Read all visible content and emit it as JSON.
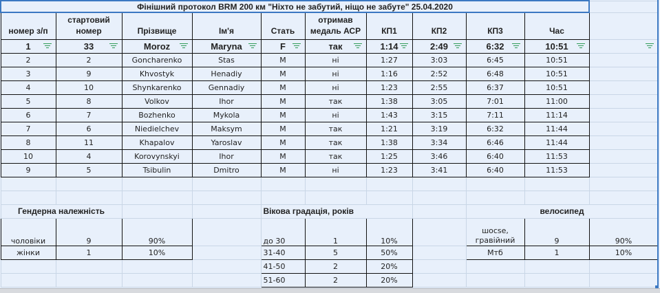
{
  "title": "Фінішний протокол BRM 200 км \"Ніхто не забутий, ніщо не забуте\"  25.04.2020",
  "headers": [
    "номер з/п",
    "стартовий номер",
    "Прізвище",
    "Ім'я",
    "Стать",
    "отримав медаль АСР",
    "КП1",
    "КП2",
    "КП3",
    "Час"
  ],
  "filter_icon": "filter-icon",
  "rows": [
    [
      "1",
      "33",
      "Moroz",
      "Maryna",
      "F",
      "так",
      "1:14",
      "2:49",
      "6:32",
      "10:51"
    ],
    [
      "2",
      "2",
      "Goncharenko",
      "Stas",
      "M",
      "ні",
      "1:27",
      "3:03",
      "6:45",
      "10:51"
    ],
    [
      "3",
      "9",
      "Khvostyk",
      "Henadiy",
      "M",
      "ні",
      "1:16",
      "2:52",
      "6:48",
      "10:51"
    ],
    [
      "4",
      "10",
      "Shynkarenko",
      "Gennadiy",
      "M",
      "ні",
      "1:23",
      "2:55",
      "6:37",
      "10:51"
    ],
    [
      "5",
      "8",
      "Volkov",
      "Ihor",
      "M",
      "так",
      "1:38",
      "3:05",
      "7:01",
      "11:00"
    ],
    [
      "6",
      "7",
      "Bozhenko",
      "Mykola",
      "M",
      "ні",
      "1:43",
      "3:15",
      "7:11",
      "11:14"
    ],
    [
      "7",
      "6",
      "Niedielchev",
      "Maksym",
      "M",
      "так",
      "1:21",
      "3:19",
      "6:32",
      "11:44"
    ],
    [
      "8",
      "11",
      "Khapalov",
      "Yaroslav",
      "M",
      "так",
      "1:38",
      "3:34",
      "6:46",
      "11:44"
    ],
    [
      "10",
      "4",
      "Korovynskyi",
      "Ihor",
      "M",
      "так",
      "1:25",
      "3:46",
      "6:40",
      "11:53"
    ],
    [
      "9",
      "5",
      "Tsibulin",
      "Dmitro",
      "M",
      "ні",
      "1:23",
      "3:41",
      "6:40",
      "11:53"
    ]
  ],
  "gender": {
    "heading": "Гендерна належність",
    "rows": [
      [
        "чоловіки",
        "9",
        "90%"
      ],
      [
        "жінки",
        "1",
        "10%"
      ]
    ]
  },
  "age": {
    "heading": "Вікова градація, років",
    "rows": [
      [
        "до 30",
        "1",
        "10%"
      ],
      [
        "31-40",
        "5",
        "50%"
      ],
      [
        "41-50",
        "2",
        "20%"
      ],
      [
        "51-60",
        "2",
        "20%"
      ]
    ]
  },
  "bike": {
    "heading": "велосипед",
    "rows": [
      [
        "шосse, гравійний",
        "9",
        "90%"
      ],
      [
        "Мтб",
        "1",
        "10%"
      ]
    ]
  },
  "colors": {
    "background": "#e8f0fb",
    "selection": "#3b78c2",
    "filter": "#2e9b57"
  }
}
